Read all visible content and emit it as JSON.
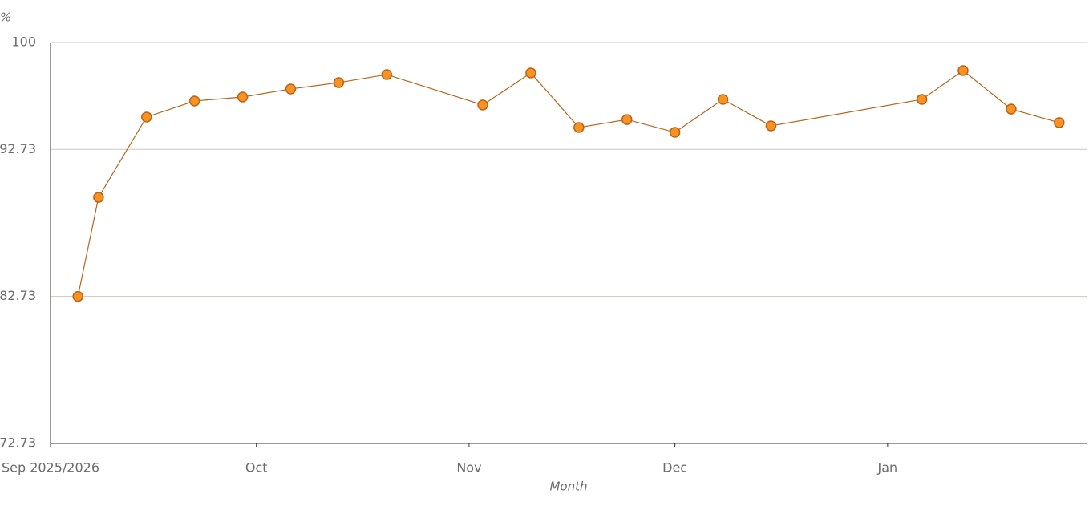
{
  "chart_data": {
    "type": "line",
    "y_label": "%",
    "x_label": "Month",
    "x": [
      4,
      7,
      14,
      21,
      28,
      35,
      42,
      49,
      63,
      70,
      77,
      84,
      91,
      98,
      105,
      127,
      133,
      140,
      147
    ],
    "series": [
      {
        "color": "#f7931e",
        "line_color": "#b5651d",
        "values": [
          82.73,
          89.47,
          94.93,
          96.02,
          96.29,
          96.84,
          97.27,
          97.82,
          95.75,
          97.93,
          94.22,
          94.76,
          93.89,
          96.13,
          94.33,
          96.13,
          98.09,
          95.47,
          94.55
        ]
      }
    ],
    "xlim": [
      0,
      151
    ],
    "xticks": [
      {
        "value": 0,
        "label": "Sep 2025/2026"
      },
      {
        "value": 30,
        "label": "Oct"
      },
      {
        "value": 61,
        "label": "Nov"
      },
      {
        "value": 91,
        "label": "Dec"
      },
      {
        "value": 122,
        "label": "Jan"
      }
    ],
    "ylim": [
      72.73,
      100
    ],
    "yticks": [
      72.73,
      82.73,
      92.73,
      100
    ],
    "grid": true
  }
}
